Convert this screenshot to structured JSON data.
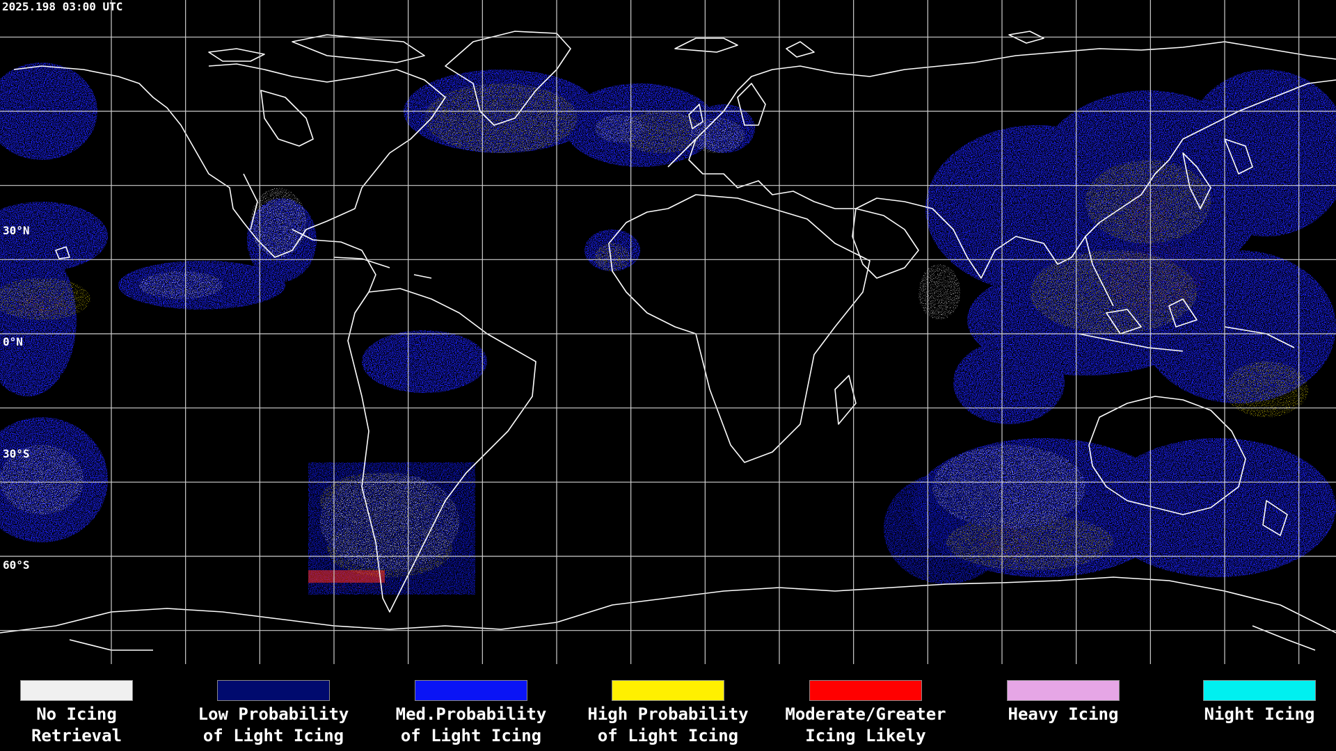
{
  "timestamp": "2025.198 03:00 UTC",
  "latitude_labels": [
    "30°N",
    "0°N",
    "30°S",
    "60°S"
  ],
  "legend": [
    {
      "line1": "No Icing",
      "line2": "Retrieval",
      "color": "#f0f0f0"
    },
    {
      "line1": "Low Probability",
      "line2": "of Light Icing",
      "color": "#000a6e"
    },
    {
      "line1": "Med.Probability",
      "line2": "of Light Icing",
      "color": "#0a14f5"
    },
    {
      "line1": "High Probability",
      "line2": "of Light Icing",
      "color": "#fff000"
    },
    {
      "line1": "Moderate/Greater",
      "line2": "Icing Likely",
      "color": "#ff0000"
    },
    {
      "line1": "Heavy Icing",
      "line2": "",
      "color": "#e6a6e6"
    },
    {
      "line1": "Night Icing",
      "line2": "",
      "color": "#00f0f0"
    }
  ],
  "colors": {
    "background": "#000000",
    "coastline": "#ffffff",
    "grid": "#cccccc"
  },
  "map": {
    "projection": "equirectangular",
    "grid_spacing_lon_deg": 20,
    "grid_spacing_lat_deg": 20,
    "icon": "world-map"
  }
}
